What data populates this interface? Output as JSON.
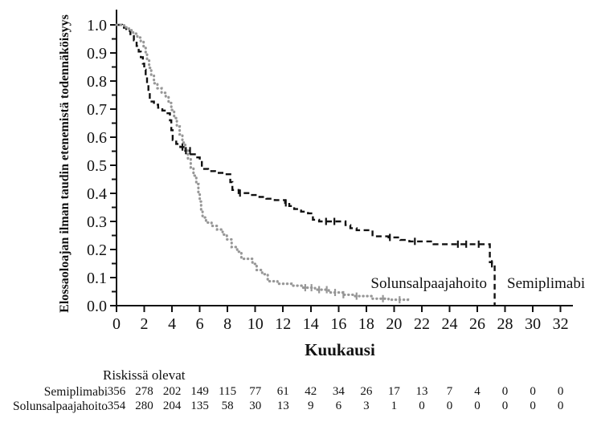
{
  "chart_data": {
    "type": "line",
    "subtype": "kaplan-meier-step",
    "xlabel": "Kuukausi",
    "ylabel": "Elossaoloajan ilman taudin etenemistä todennäköisyys",
    "xlim": [
      0,
      32
    ],
    "ylim": [
      0.0,
      1.0
    ],
    "xticks": [
      0,
      2,
      4,
      6,
      8,
      10,
      12,
      14,
      16,
      18,
      20,
      22,
      24,
      26,
      28,
      30,
      32
    ],
    "xtick_labels": [
      "0",
      "2",
      "4",
      "6",
      "8",
      "10",
      "12",
      "14",
      "16",
      "18",
      "20",
      "22",
      "24",
      "26",
      "28",
      "30",
      "32"
    ],
    "ytick_labels": [
      "0.0",
      "0.1",
      "0.2",
      "0.3",
      "0.4",
      "0.5",
      "0.6",
      "0.7",
      "0.8",
      "0.9",
      "1.0"
    ],
    "ytick_minor_step": 0.05,
    "grid": false,
    "axis_color": "#111111",
    "series": [
      {
        "name": "Semiplimabi",
        "color": "#111111",
        "style": "dashed",
        "points": [
          [
            0,
            1.0
          ],
          [
            0.4,
            0.99
          ],
          [
            0.7,
            0.978
          ],
          [
            1.0,
            0.96
          ],
          [
            1.25,
            0.945
          ],
          [
            1.45,
            0.925
          ],
          [
            1.6,
            0.905
          ],
          [
            1.75,
            0.885
          ],
          [
            1.9,
            0.862
          ],
          [
            2.0,
            0.84
          ],
          [
            2.1,
            0.815
          ],
          [
            2.2,
            0.788
          ],
          [
            2.3,
            0.757
          ],
          [
            2.4,
            0.727
          ],
          [
            2.7,
            0.716
          ],
          [
            3.0,
            0.705
          ],
          [
            3.3,
            0.695
          ],
          [
            3.6,
            0.685
          ],
          [
            3.85,
            0.66
          ],
          [
            3.95,
            0.625
          ],
          [
            4.05,
            0.59
          ],
          [
            4.3,
            0.576
          ],
          [
            4.6,
            0.565
          ],
          [
            4.95,
            0.552
          ],
          [
            5.35,
            0.539
          ],
          [
            5.75,
            0.528
          ],
          [
            6.0,
            0.517
          ],
          [
            6.15,
            0.487
          ],
          [
            6.6,
            0.479
          ],
          [
            7.1,
            0.473
          ],
          [
            7.7,
            0.468
          ],
          [
            8.2,
            0.44
          ],
          [
            8.35,
            0.412
          ],
          [
            8.8,
            0.401
          ],
          [
            9.5,
            0.394
          ],
          [
            10.3,
            0.387
          ],
          [
            10.8,
            0.381
          ],
          [
            11.4,
            0.376
          ],
          [
            12.15,
            0.366
          ],
          [
            12.45,
            0.355
          ],
          [
            12.8,
            0.344
          ],
          [
            13.3,
            0.335
          ],
          [
            13.8,
            0.329
          ],
          [
            14.15,
            0.306
          ],
          [
            14.6,
            0.3
          ],
          [
            16.5,
            0.287
          ],
          [
            16.85,
            0.276
          ],
          [
            17.3,
            0.269
          ],
          [
            18.45,
            0.247
          ],
          [
            19.6,
            0.243
          ],
          [
            20.45,
            0.234
          ],
          [
            21.1,
            0.229
          ],
          [
            22.85,
            0.219
          ],
          [
            26.9,
            0.155
          ],
          [
            27.05,
            0.149
          ],
          [
            27.25,
            0.0
          ]
        ],
        "ends_at_zero": true,
        "censor_months": [
          4.75,
          5.0,
          5.3,
          8.9,
          12.2,
          15.1,
          15.7,
          19.7,
          21.5,
          24.6,
          25.2,
          26.1,
          27.05
        ]
      },
      {
        "name": "Solunsalpaajahoito",
        "color": "#979797",
        "style": "dotted",
        "points": [
          [
            0,
            1.0
          ],
          [
            0.55,
            0.991
          ],
          [
            0.9,
            0.981
          ],
          [
            1.2,
            0.969
          ],
          [
            1.5,
            0.955
          ],
          [
            1.75,
            0.941
          ],
          [
            1.95,
            0.923
          ],
          [
            2.1,
            0.9
          ],
          [
            2.2,
            0.874
          ],
          [
            2.35,
            0.847
          ],
          [
            2.5,
            0.82
          ],
          [
            2.7,
            0.792
          ],
          [
            2.95,
            0.774
          ],
          [
            3.25,
            0.758
          ],
          [
            3.55,
            0.744
          ],
          [
            3.75,
            0.722
          ],
          [
            3.95,
            0.697
          ],
          [
            4.15,
            0.668
          ],
          [
            4.35,
            0.638
          ],
          [
            4.55,
            0.61
          ],
          [
            4.75,
            0.581
          ],
          [
            4.95,
            0.552
          ],
          [
            5.15,
            0.522
          ],
          [
            5.35,
            0.492
          ],
          [
            5.55,
            0.463
          ],
          [
            5.75,
            0.433
          ],
          [
            5.9,
            0.402
          ],
          [
            6.0,
            0.371
          ],
          [
            6.1,
            0.341
          ],
          [
            6.2,
            0.314
          ],
          [
            6.45,
            0.296
          ],
          [
            6.85,
            0.284
          ],
          [
            7.25,
            0.271
          ],
          [
            7.65,
            0.253
          ],
          [
            7.95,
            0.236
          ],
          [
            8.3,
            0.209
          ],
          [
            8.7,
            0.192
          ],
          [
            9.0,
            0.167
          ],
          [
            9.8,
            0.149
          ],
          [
            10.1,
            0.127
          ],
          [
            10.5,
            0.112
          ],
          [
            10.9,
            0.087
          ],
          [
            11.6,
            0.078
          ],
          [
            12.6,
            0.071
          ],
          [
            13.4,
            0.064
          ],
          [
            14.3,
            0.057
          ],
          [
            15.3,
            0.047
          ],
          [
            16.3,
            0.039
          ],
          [
            17.1,
            0.034
          ],
          [
            18.4,
            0.025
          ],
          [
            19.6,
            0.021
          ],
          [
            21.0,
            0.019
          ]
        ],
        "ends_at_zero": false,
        "censor_months": [
          13.6,
          14.05,
          14.6,
          15.15,
          15.75,
          16.35,
          17.3,
          19.2,
          20.4
        ]
      }
    ],
    "annotations": [
      {
        "text": "Solunsalpaajahoito",
        "position": "left-of-final-drop"
      },
      {
        "text": "Semiplimabi",
        "position": "right-of-final-drop"
      }
    ]
  },
  "risk_table": {
    "title": "Riskissä olevat",
    "months": [
      0,
      2,
      4,
      6,
      8,
      10,
      12,
      14,
      16,
      18,
      20,
      22,
      24,
      26,
      28,
      30,
      32
    ],
    "rows": [
      {
        "label": "Semiplimabi",
        "values": [
          356,
          278,
          202,
          149,
          115,
          77,
          61,
          42,
          34,
          26,
          17,
          13,
          7,
          4,
          0,
          0,
          0
        ]
      },
      {
        "label": "Solunsalpaajahoito",
        "values": [
          354,
          280,
          204,
          135,
          58,
          30,
          13,
          9,
          6,
          3,
          1,
          0,
          0,
          0,
          0,
          0,
          0
        ]
      }
    ]
  }
}
